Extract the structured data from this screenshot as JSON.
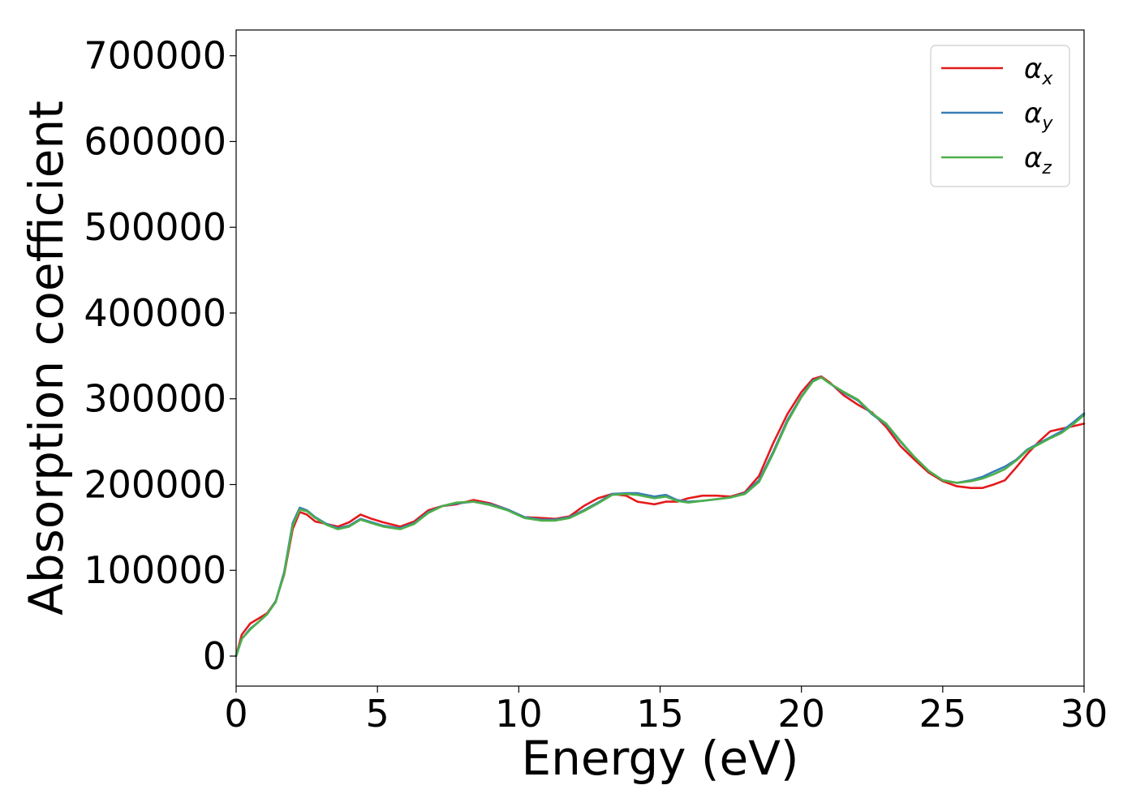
{
  "chart_data": {
    "type": "line",
    "title": "",
    "xlabel": "Energy (eV)",
    "ylabel": "Absorption coefficient",
    "xlim": [
      0,
      30
    ],
    "ylim": [
      -35000,
      730000
    ],
    "xticks": [
      0,
      5,
      10,
      15,
      20,
      25,
      30
    ],
    "yticks": [
      0,
      100000,
      200000,
      300000,
      400000,
      500000,
      600000,
      700000
    ],
    "xtick_labels": [
      "0",
      "5",
      "10",
      "15",
      "20",
      "25",
      "30"
    ],
    "ytick_labels": [
      "0",
      "100000",
      "200000",
      "300000",
      "400000",
      "500000",
      "600000",
      "700000"
    ],
    "grid": false,
    "legend_position": "top-right",
    "series": [
      {
        "name": "α_x",
        "label_main": "α",
        "label_sub": "x",
        "color": "#e41a1c",
        "points": [
          [
            0,
            0
          ],
          [
            0.2,
            25000
          ],
          [
            0.5,
            38000
          ],
          [
            0.8,
            44000
          ],
          [
            1.1,
            50000
          ],
          [
            1.4,
            64000
          ],
          [
            1.7,
            95000
          ],
          [
            2.0,
            148000
          ],
          [
            2.25,
            168000
          ],
          [
            2.5,
            165000
          ],
          [
            2.8,
            157000
          ],
          [
            3.2,
            154000
          ],
          [
            3.6,
            151000
          ],
          [
            4.0,
            156000
          ],
          [
            4.4,
            165000
          ],
          [
            4.8,
            160000
          ],
          [
            5.2,
            156000
          ],
          [
            5.8,
            151000
          ],
          [
            6.3,
            157000
          ],
          [
            6.8,
            170000
          ],
          [
            7.3,
            175000
          ],
          [
            7.8,
            177000
          ],
          [
            8.4,
            182000
          ],
          [
            9.0,
            178000
          ],
          [
            9.6,
            171000
          ],
          [
            10.2,
            162000
          ],
          [
            10.8,
            161000
          ],
          [
            11.3,
            160000
          ],
          [
            11.8,
            163000
          ],
          [
            12.3,
            175000
          ],
          [
            12.8,
            184000
          ],
          [
            13.3,
            189000
          ],
          [
            13.8,
            187000
          ],
          [
            14.2,
            180000
          ],
          [
            14.8,
            177000
          ],
          [
            15.2,
            180000
          ],
          [
            15.6,
            180000
          ],
          [
            16.0,
            184000
          ],
          [
            16.5,
            187000
          ],
          [
            17.0,
            187000
          ],
          [
            17.5,
            186000
          ],
          [
            18.0,
            191000
          ],
          [
            18.5,
            210000
          ],
          [
            19.0,
            248000
          ],
          [
            19.5,
            282000
          ],
          [
            20.0,
            308000
          ],
          [
            20.4,
            323000
          ],
          [
            20.7,
            326000
          ],
          [
            21.0,
            319000
          ],
          [
            21.5,
            304000
          ],
          [
            22.0,
            293000
          ],
          [
            22.5,
            284000
          ],
          [
            23.0,
            267000
          ],
          [
            23.5,
            245000
          ],
          [
            24.0,
            229000
          ],
          [
            24.5,
            214000
          ],
          [
            25.0,
            204000
          ],
          [
            25.5,
            198000
          ],
          [
            26.0,
            196000
          ],
          [
            26.4,
            196000
          ],
          [
            26.8,
            200000
          ],
          [
            27.2,
            205000
          ],
          [
            27.6,
            220000
          ],
          [
            28.0,
            236000
          ],
          [
            28.4,
            250000
          ],
          [
            28.8,
            262000
          ],
          [
            29.2,
            265000
          ],
          [
            29.6,
            268000
          ],
          [
            30.0,
            271000
          ]
        ]
      },
      {
        "name": "α_y",
        "label_main": "α",
        "label_sub": "y",
        "color": "#377eb8",
        "points": [
          [
            0,
            0
          ],
          [
            0.2,
            20000
          ],
          [
            0.5,
            32000
          ],
          [
            0.8,
            40000
          ],
          [
            1.1,
            49000
          ],
          [
            1.4,
            64000
          ],
          [
            1.7,
            98000
          ],
          [
            2.0,
            155000
          ],
          [
            2.25,
            173000
          ],
          [
            2.5,
            170000
          ],
          [
            2.8,
            162000
          ],
          [
            3.2,
            154000
          ],
          [
            3.6,
            149000
          ],
          [
            4.0,
            152000
          ],
          [
            4.4,
            160000
          ],
          [
            4.8,
            156000
          ],
          [
            5.2,
            152000
          ],
          [
            5.8,
            149000
          ],
          [
            6.3,
            155000
          ],
          [
            6.8,
            168000
          ],
          [
            7.3,
            175000
          ],
          [
            7.8,
            178000
          ],
          [
            8.4,
            180000
          ],
          [
            9.0,
            177000
          ],
          [
            9.6,
            171000
          ],
          [
            10.2,
            162000
          ],
          [
            10.8,
            159000
          ],
          [
            11.3,
            159000
          ],
          [
            11.8,
            162000
          ],
          [
            12.3,
            170000
          ],
          [
            12.8,
            179000
          ],
          [
            13.3,
            189000
          ],
          [
            13.8,
            190000
          ],
          [
            14.2,
            190000
          ],
          [
            14.8,
            186000
          ],
          [
            15.2,
            188000
          ],
          [
            15.6,
            182000
          ],
          [
            16.0,
            180000
          ],
          [
            16.5,
            181000
          ],
          [
            17.0,
            183000
          ],
          [
            17.5,
            185000
          ],
          [
            18.0,
            190000
          ],
          [
            18.5,
            205000
          ],
          [
            19.0,
            238000
          ],
          [
            19.5,
            275000
          ],
          [
            20.0,
            303000
          ],
          [
            20.4,
            321000
          ],
          [
            20.7,
            325000
          ],
          [
            21.0,
            318000
          ],
          [
            21.5,
            307000
          ],
          [
            22.0,
            298000
          ],
          [
            22.5,
            282000
          ],
          [
            23.0,
            270000
          ],
          [
            23.5,
            250000
          ],
          [
            24.0,
            232000
          ],
          [
            24.5,
            216000
          ],
          [
            25.0,
            205000
          ],
          [
            25.5,
            202000
          ],
          [
            26.0,
            205000
          ],
          [
            26.4,
            209000
          ],
          [
            26.8,
            215000
          ],
          [
            27.2,
            221000
          ],
          [
            27.6,
            229000
          ],
          [
            28.0,
            241000
          ],
          [
            28.4,
            248000
          ],
          [
            28.8,
            255000
          ],
          [
            29.2,
            262000
          ],
          [
            29.6,
            272000
          ],
          [
            30.0,
            283000
          ]
        ]
      },
      {
        "name": "α_z",
        "label_main": "α",
        "label_sub": "z",
        "color": "#4daf4a",
        "points": [
          [
            0,
            0
          ],
          [
            0.2,
            20000
          ],
          [
            0.5,
            31000
          ],
          [
            0.8,
            40000
          ],
          [
            1.1,
            49000
          ],
          [
            1.4,
            63000
          ],
          [
            1.7,
            96000
          ],
          [
            2.0,
            152000
          ],
          [
            2.25,
            171000
          ],
          [
            2.5,
            169000
          ],
          [
            2.8,
            161000
          ],
          [
            3.2,
            153000
          ],
          [
            3.6,
            148000
          ],
          [
            4.0,
            151000
          ],
          [
            4.4,
            159000
          ],
          [
            4.8,
            155000
          ],
          [
            5.2,
            151000
          ],
          [
            5.8,
            148000
          ],
          [
            6.3,
            154000
          ],
          [
            6.8,
            167000
          ],
          [
            7.3,
            175000
          ],
          [
            7.8,
            179000
          ],
          [
            8.4,
            180000
          ],
          [
            9.0,
            176000
          ],
          [
            9.6,
            170000
          ],
          [
            10.2,
            161000
          ],
          [
            10.8,
            158000
          ],
          [
            11.3,
            158000
          ],
          [
            11.8,
            161000
          ],
          [
            12.3,
            169000
          ],
          [
            12.8,
            178000
          ],
          [
            13.3,
            188000
          ],
          [
            13.8,
            189000
          ],
          [
            14.2,
            188000
          ],
          [
            14.8,
            184000
          ],
          [
            15.2,
            186000
          ],
          [
            15.6,
            181000
          ],
          [
            16.0,
            179000
          ],
          [
            16.5,
            181000
          ],
          [
            17.0,
            183000
          ],
          [
            17.5,
            185000
          ],
          [
            18.0,
            189000
          ],
          [
            18.5,
            203000
          ],
          [
            19.0,
            236000
          ],
          [
            19.5,
            273000
          ],
          [
            20.0,
            302000
          ],
          [
            20.4,
            320000
          ],
          [
            20.7,
            325000
          ],
          [
            21.0,
            318000
          ],
          [
            21.5,
            308000
          ],
          [
            22.0,
            299000
          ],
          [
            22.5,
            283000
          ],
          [
            23.0,
            271000
          ],
          [
            23.5,
            251000
          ],
          [
            24.0,
            232000
          ],
          [
            24.5,
            216000
          ],
          [
            25.0,
            205000
          ],
          [
            25.5,
            202000
          ],
          [
            26.0,
            204000
          ],
          [
            26.4,
            207000
          ],
          [
            26.8,
            212000
          ],
          [
            27.2,
            218000
          ],
          [
            27.6,
            228000
          ],
          [
            28.0,
            240000
          ],
          [
            28.4,
            247000
          ],
          [
            28.8,
            254000
          ],
          [
            29.2,
            260000
          ],
          [
            29.6,
            270000
          ],
          [
            30.0,
            281000
          ]
        ]
      }
    ]
  }
}
